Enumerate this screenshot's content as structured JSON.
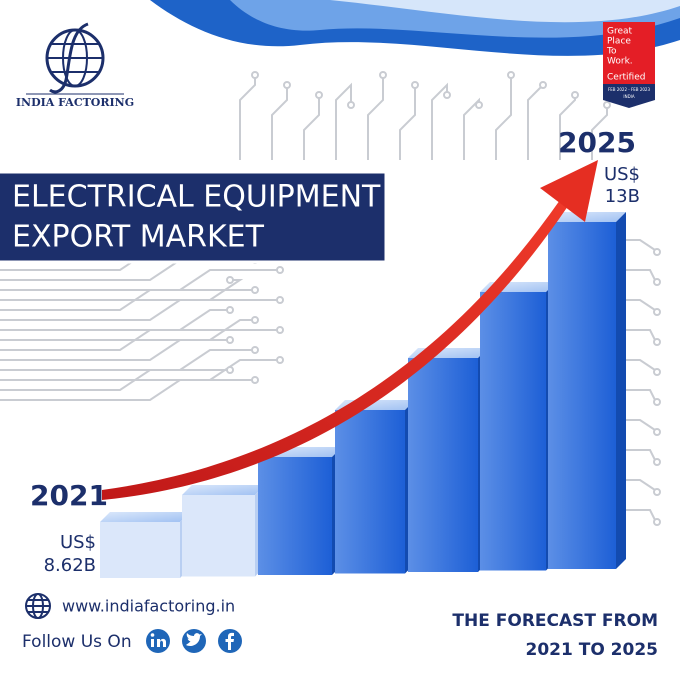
{
  "logo": {
    "name": "INDIA FACTORING"
  },
  "badge": {
    "lines": [
      "Great",
      "Place",
      "To",
      "Work."
    ],
    "certified": "Certified",
    "period": "FEB 2022 - FEB 2023",
    "country": "INDIA"
  },
  "title": {
    "lines": [
      "ELECTRICAL EQUIPMENT",
      "EXPORT MARKET"
    ]
  },
  "start": {
    "year": "2021",
    "currency": "US$",
    "amount": "8.62B"
  },
  "end": {
    "year": "2025",
    "currency": "US$",
    "amount": "13B"
  },
  "contact": {
    "website": "www.indiafactoring.in",
    "follow": "Follow Us On"
  },
  "forecast": {
    "lines": [
      "THE FORECAST FROM",
      "2021 TO 2025"
    ]
  }
}
